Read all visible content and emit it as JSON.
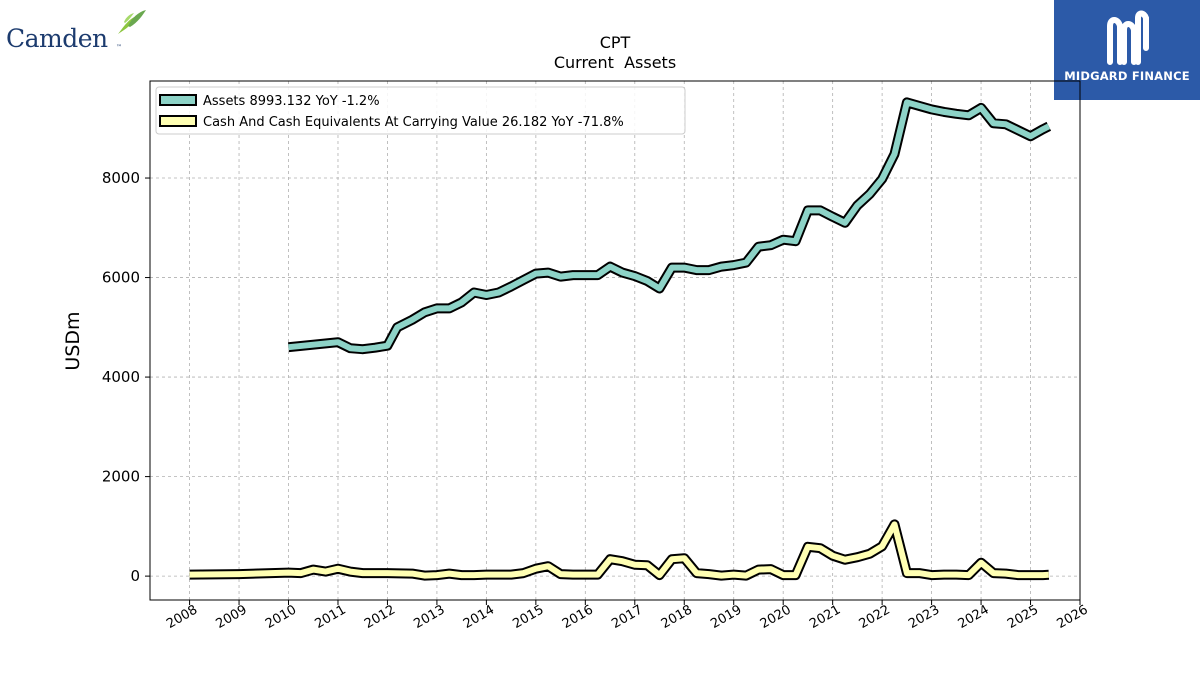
{
  "logos": {
    "left_text": "Camden",
    "left_mark": "leaf-bird-icon",
    "right_text": "MIDGARD FINANCE",
    "right_mark": "midgard-m-icon"
  },
  "colors": {
    "assets": "#8dd3c7",
    "cash": "#ffffb3",
    "outline": "#000000",
    "grid": "#b0b0b0",
    "right_logo_bg": "#2c5aa8"
  },
  "chart_data": {
    "type": "line",
    "title": "CPT",
    "subtitle": "Current  Assets",
    "xlabel": "",
    "ylabel": "USDm",
    "xlim": [
      2007.2,
      2026.0
    ],
    "ylim": [
      -480,
      9950
    ],
    "grid": true,
    "legend_position": "top-left",
    "x_ticks": [
      "2008",
      "2009",
      "2010",
      "2011",
      "2012",
      "2013",
      "2014",
      "2015",
      "2016",
      "2017",
      "2018",
      "2019",
      "2020",
      "2021",
      "2022",
      "2023",
      "2024",
      "2025",
      "2026"
    ],
    "y_ticks": [
      "0",
      "2000",
      "4000",
      "6000",
      "8000"
    ],
    "series": [
      {
        "name": "Assets  8993.132 YoY -1.2%",
        "x": [
          2010.0,
          2011.0,
          2011.25,
          2011.5,
          2011.75,
          2012.0,
          2012.2,
          2012.5,
          2012.75,
          2013.0,
          2013.25,
          2013.5,
          2013.75,
          2014.0,
          2014.25,
          2014.5,
          2014.75,
          2015.0,
          2015.25,
          2015.5,
          2015.75,
          2016.0,
          2016.25,
          2016.5,
          2016.75,
          2017.0,
          2017.25,
          2017.5,
          2017.75,
          2018.0,
          2018.25,
          2018.5,
          2018.75,
          2019.0,
          2019.25,
          2019.5,
          2019.75,
          2020.0,
          2020.25,
          2020.5,
          2020.75,
          2021.0,
          2021.25,
          2021.5,
          2021.75,
          2022.0,
          2022.25,
          2022.5,
          2022.75,
          2023.0,
          2023.25,
          2023.5,
          2023.75,
          2024.0,
          2024.25,
          2024.5,
          2024.75,
          2025.0,
          2025.25,
          2025.37
        ],
        "values": [
          4600,
          4700,
          4580,
          4560,
          4590,
          4630,
          5000,
          5150,
          5300,
          5380,
          5380,
          5500,
          5700,
          5650,
          5700,
          5820,
          5950,
          6080,
          6100,
          6020,
          6050,
          6050,
          6050,
          6220,
          6100,
          6030,
          5930,
          5780,
          6200,
          6200,
          6150,
          6150,
          6220,
          6250,
          6300,
          6620,
          6650,
          6760,
          6730,
          7350,
          7350,
          7220,
          7100,
          7450,
          7680,
          7980,
          8480,
          9520,
          9450,
          9380,
          9330,
          9290,
          9260,
          9410,
          9100,
          9080,
          8960,
          8840,
          8980,
          9040
        ]
      },
      {
        "name": "Cash And Cash Equivalents At Carrying Value  26.182 YoY -71.8%",
        "x": [
          2008.0,
          2009.0,
          2010.0,
          2010.25,
          2010.5,
          2010.75,
          2011.0,
          2011.25,
          2011.5,
          2011.75,
          2012.0,
          2012.5,
          2012.75,
          2013.0,
          2013.25,
          2013.5,
          2013.75,
          2014.0,
          2014.25,
          2014.5,
          2014.75,
          2015.0,
          2015.25,
          2015.5,
          2015.75,
          2016.0,
          2016.25,
          2016.5,
          2016.75,
          2017.0,
          2017.25,
          2017.5,
          2017.75,
          2018.0,
          2018.25,
          2018.5,
          2018.75,
          2019.0,
          2019.25,
          2019.5,
          2019.75,
          2020.0,
          2020.25,
          2020.5,
          2020.75,
          2021.0,
          2021.25,
          2021.5,
          2021.75,
          2022.0,
          2022.25,
          2022.5,
          2022.75,
          2023.0,
          2023.25,
          2023.5,
          2023.75,
          2024.0,
          2024.25,
          2024.5,
          2024.75,
          2025.0,
          2025.25,
          2025.37
        ],
        "values": [
          30,
          40,
          70,
          60,
          130,
          90,
          150,
          90,
          60,
          60,
          60,
          50,
          10,
          20,
          50,
          20,
          20,
          30,
          30,
          30,
          60,
          150,
          200,
          40,
          30,
          30,
          30,
          340,
          300,
          230,
          220,
          20,
          340,
          360,
          60,
          40,
          10,
          30,
          10,
          130,
          140,
          20,
          20,
          590,
          560,
          410,
          330,
          380,
          450,
          600,
          1040,
          60,
          60,
          20,
          30,
          30,
          20,
          270,
          60,
          50,
          20,
          20,
          20,
          26
        ]
      }
    ]
  }
}
